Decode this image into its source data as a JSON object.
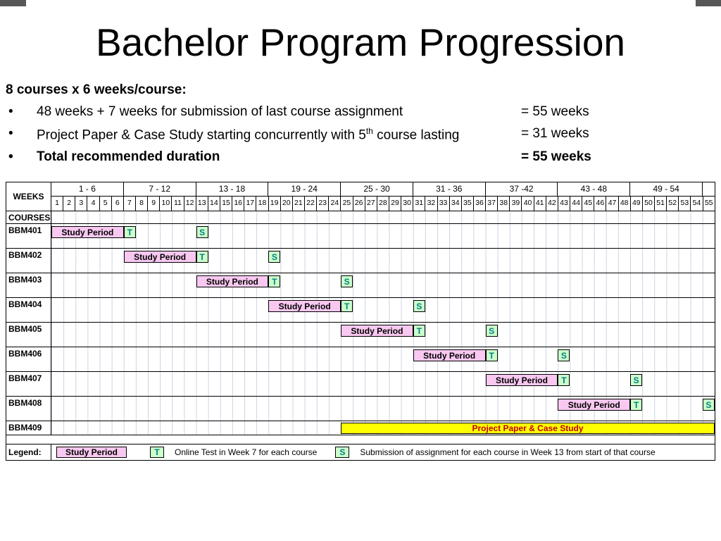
{
  "slide": {
    "title": "Bachelor Program Progression",
    "intro_heading": "8 courses x 6 weeks/course:",
    "bullet_char": "•",
    "bullets": [
      {
        "segments": [
          {
            "t": "48 weeks + 7 weeks for submission of last course assignment"
          }
        ],
        "value": "= 55 weeks",
        "bold": false
      },
      {
        "segments": [
          {
            "t": "Project Paper & Case Study starting concurrently with 5"
          },
          {
            "sup": "th"
          },
          {
            "t": " course lasting"
          }
        ],
        "value": "= 31 weeks",
        "bold": false
      },
      {
        "segments": [
          {
            "t": "Total recommended duration"
          }
        ],
        "value": "= 55 weeks",
        "bold": true
      }
    ]
  },
  "chart_data": {
    "type": "gantt",
    "title_row_label": "WEEKS",
    "courses_row_label": "COURSES",
    "week_groups": [
      "1 - 6",
      "7 - 12",
      "13 - 18",
      "19 - 24",
      "25 - 30",
      "31 - 36",
      "37 -42",
      "43 - 48",
      "49 - 54"
    ],
    "weeks": [
      1,
      2,
      3,
      4,
      5,
      6,
      7,
      8,
      9,
      10,
      11,
      12,
      13,
      14,
      15,
      16,
      17,
      18,
      19,
      20,
      21,
      22,
      23,
      24,
      25,
      26,
      27,
      28,
      29,
      30,
      31,
      32,
      33,
      34,
      35,
      36,
      37,
      38,
      39,
      40,
      41,
      42,
      43,
      44,
      45,
      46,
      47,
      48,
      49,
      50,
      51,
      52,
      53,
      54,
      55
    ],
    "total_weeks": 55,
    "study_bar_label": "Study Period",
    "test_mark": "T",
    "submission_mark": "S",
    "courses": [
      {
        "name": "BBM401",
        "study_start": 1,
        "study_end": 6,
        "test_week": 7,
        "submission_week": 13
      },
      {
        "name": "BBM402",
        "study_start": 7,
        "study_end": 12,
        "test_week": 13,
        "submission_week": 19
      },
      {
        "name": "BBM403",
        "study_start": 13,
        "study_end": 18,
        "test_week": 19,
        "submission_week": 25
      },
      {
        "name": "BBM404",
        "study_start": 19,
        "study_end": 24,
        "test_week": 25,
        "submission_week": 31
      },
      {
        "name": "BBM405",
        "study_start": 25,
        "study_end": 30,
        "test_week": 31,
        "submission_week": 37
      },
      {
        "name": "BBM406",
        "study_start": 31,
        "study_end": 36,
        "test_week": 37,
        "submission_week": 43
      },
      {
        "name": "BBM407",
        "study_start": 37,
        "study_end": 42,
        "test_week": 43,
        "submission_week": 49
      },
      {
        "name": "BBM408",
        "study_start": 43,
        "study_end": 48,
        "test_week": 49,
        "submission_week": 55
      }
    ],
    "project_row": {
      "name": "BBM409",
      "label": "Project Paper & Case Study",
      "start": 25,
      "end": 55
    },
    "colors": {
      "study_fill": "#F8C8F0",
      "mark_fill": "#CCFFCC",
      "mark_text": "#008080",
      "project_fill": "#FFFF00",
      "project_text": "#C00000"
    }
  },
  "legend": {
    "label": "Legend:",
    "study": "Study Period",
    "t": "T",
    "t_desc": "Online Test in Week 7 for each course",
    "s": "S",
    "s_desc": "Submission of assignment for each course in Week 13 from start of that course"
  }
}
